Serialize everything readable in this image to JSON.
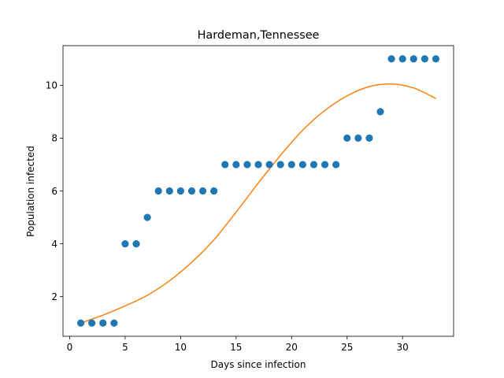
{
  "chart_data": {
    "type": "scatter",
    "title": "Hardeman,Tennessee",
    "xlabel": "Days since infection",
    "ylabel": "Population infected",
    "xlim": [
      -0.6,
      34.6
    ],
    "ylim": [
      0.5,
      11.5
    ],
    "xticks": [
      0,
      5,
      10,
      15,
      20,
      25,
      30
    ],
    "yticks": [
      2,
      4,
      6,
      8,
      10
    ],
    "grid": false,
    "colors": {
      "points": "#1f77b4",
      "fit": "#ff7f0e"
    },
    "series": [
      {
        "kind": "scatter",
        "x": [
          1,
          2,
          3,
          4,
          5,
          6,
          7,
          8,
          9,
          10,
          11,
          12,
          13,
          14,
          15,
          16,
          17,
          18,
          19,
          20,
          21,
          22,
          23,
          24,
          25,
          26,
          27,
          28,
          29,
          30,
          31,
          32,
          33
        ],
        "y": [
          1,
          1,
          1,
          1,
          4,
          4,
          5,
          6,
          6,
          6,
          6,
          6,
          6,
          7,
          7,
          7,
          7,
          7,
          7,
          7,
          7,
          7,
          7,
          7,
          8,
          8,
          8,
          9,
          11,
          11,
          11,
          11,
          11
        ]
      },
      {
        "kind": "line",
        "x": [
          1,
          3,
          5,
          7,
          9,
          11,
          13,
          15,
          17,
          19,
          21,
          23,
          25,
          27,
          29,
          31,
          33
        ],
        "y": [
          1.0,
          1.3,
          1.65,
          2.05,
          2.6,
          3.3,
          4.15,
          5.2,
          6.3,
          7.35,
          8.3,
          9.05,
          9.6,
          9.95,
          10.05,
          9.9,
          9.5
        ]
      }
    ]
  }
}
